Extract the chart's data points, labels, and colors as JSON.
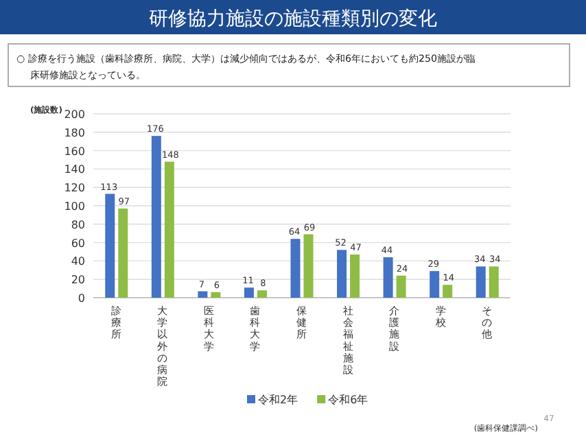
{
  "chart_data": {
    "type": "bar",
    "title": "研修協力施設の施設種類別の変化",
    "subtitle": "○ 診療を行う施設（歯科診療所、病院、大学）は減少傾向ではあるが、令和6年においても約250施設が臨床研修施設となっている。",
    "ylabel": "(施設数)",
    "categories": [
      "診療所",
      "大学以外の病院",
      "医科大学",
      "歯科大学",
      "保健所",
      "社会福祉施設",
      "介護施設",
      "学校",
      "その他"
    ],
    "series": [
      {
        "name": "令和2年",
        "color": "#4472c4",
        "values": [
          113,
          176,
          7,
          11,
          64,
          52,
          44,
          29,
          34
        ]
      },
      {
        "name": "令和6年",
        "color": "#8fbc45",
        "values": [
          97,
          148,
          6,
          8,
          69,
          47,
          24,
          14,
          34
        ]
      }
    ],
    "ylim": [
      0,
      200
    ],
    "yticks": [
      0,
      20,
      40,
      60,
      80,
      100,
      120,
      140,
      160,
      180,
      200
    ],
    "grid": "y",
    "legend": "bottom",
    "data_labels": true,
    "annotations": [
      "(歯科保健課調べ)",
      "47"
    ]
  }
}
